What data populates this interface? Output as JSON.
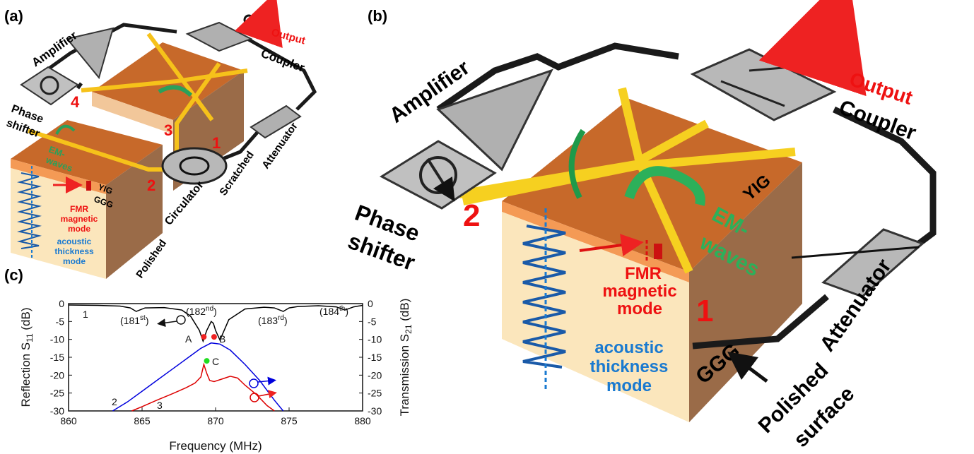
{
  "panels": {
    "a": {
      "label": "(a)",
      "amplifier": "Amplifier",
      "output": "Output",
      "coupler": "Coupler",
      "phase": "Phase",
      "shifter": "shifter",
      "em": "EM-",
      "waves": "waves",
      "yig": "YIG",
      "ggg": "GGG",
      "fmr": "FMR",
      "magnetic": "magnetic",
      "mode": "mode",
      "acoustic": "acoustic",
      "thickness": "thickness",
      "mode2": "mode",
      "circulator": "Circulator",
      "scratched": "Scratched",
      "attenuator": "Attenuator",
      "polished": "Polished",
      "port1": "1",
      "port2": "2",
      "port3": "3",
      "port4": "4"
    },
    "b": {
      "label": "(b)",
      "amplifier": "Amplifier",
      "output": "Output",
      "coupler": "Coupler",
      "phase": "Phase",
      "shifter": "shifter",
      "em": "EM-",
      "waves": "waves",
      "yig": "YIG",
      "ggg": "GGG",
      "fmr": "FMR",
      "magnetic": "magnetic",
      "mode": "mode",
      "acoustic": "acoustic",
      "thickness": "thickness",
      "mode2": "mode",
      "attenuator": "Attenuator",
      "polished": "Polished",
      "surface": "surface",
      "port1": "1",
      "port2": "2"
    },
    "c": {
      "label": "(c)",
      "curve1": "1",
      "curve2": "2",
      "curve3": "3",
      "pointA": "A",
      "pointB": "B",
      "pointC": "C",
      "mode181": "(181",
      "mode181sup": "st",
      "mode182": "(182",
      "mode182sup": "nd",
      "mode183": "(183",
      "mode183sup": "rd",
      "mode184": "(184",
      "mode184sup": "th",
      "close": ")"
    }
  },
  "chart_data": {
    "type": "line",
    "xlabel": "Frequency (MHz)",
    "ylabel_left_main": "Reflection S",
    "ylabel_left_sub": "11",
    "ylabel_left_unit": " (dB)",
    "ylabel_right_main": "Transmission S",
    "ylabel_right_sub": "21",
    "ylabel_right_unit": " (dB)",
    "xlim": [
      860,
      880
    ],
    "ylim": [
      -30,
      0
    ],
    "xticks": [
      "860",
      "865",
      "870",
      "875",
      "880"
    ],
    "yticks": [
      "0",
      "-5",
      "-10",
      "-15",
      "-20",
      "-25",
      "-30"
    ],
    "colors": {
      "curve1": "#000000",
      "curve2": "#0000dd",
      "curve3": "#dd0000",
      "marker_ab": "#ee2222",
      "marker_c": "#22dd22"
    },
    "series": [
      {
        "name": "1",
        "axis": "left",
        "x": [
          860,
          862,
          863.5,
          864.2,
          864.6,
          865.2,
          866.5,
          867.7,
          868.3,
          868.9,
          869.15,
          869.4,
          869.7,
          869.85,
          870.0,
          870.3,
          870.9,
          872,
          873.3,
          874.0,
          874.6,
          875.0,
          875.6,
          877,
          878.2,
          878.8,
          879.4,
          880
        ],
        "y": [
          -0.4,
          -0.5,
          -0.7,
          -1.2,
          -2.2,
          -1.2,
          -1.1,
          -1.8,
          -3.5,
          -7.5,
          -10.5,
          -7.5,
          -5.0,
          -5.5,
          -7.5,
          -10.2,
          -4.5,
          -1.5,
          -1.0,
          -1.2,
          -2.2,
          -1.2,
          -0.8,
          -0.6,
          -0.9,
          -1.8,
          -0.9,
          -0.5
        ]
      },
      {
        "name": "2",
        "axis": "right",
        "x": [
          863.0,
          864.0,
          865.0,
          866.0,
          867.0,
          868.0,
          869.0,
          869.7,
          870.3,
          871.0,
          872.0,
          873.0,
          874.0,
          874.6
        ],
        "y": [
          -30,
          -27.5,
          -24.5,
          -21.5,
          -18.5,
          -15.5,
          -12.5,
          -11.0,
          -11.3,
          -13.0,
          -17.0,
          -21.5,
          -27.0,
          -30
        ]
      },
      {
        "name": "3",
        "axis": "right",
        "x": [
          864.3,
          865,
          866,
          867,
          868,
          868.6,
          869.0,
          869.2,
          869.4,
          869.6,
          869.9,
          870.5,
          871.0,
          871.5,
          872.0,
          872.8,
          873.5,
          874.0
        ],
        "y": [
          -30,
          -28.8,
          -27.0,
          -25.3,
          -23.5,
          -22.2,
          -20.5,
          -17.0,
          -19.5,
          -21.5,
          -21.8,
          -21.0,
          -20.3,
          -20.8,
          -22.8,
          -25.5,
          -28.5,
          -30
        ]
      }
    ],
    "points": [
      {
        "label": "A",
        "x": 869.2,
        "y": -9.3
      },
      {
        "label": "B",
        "x": 869.9,
        "y": -9.3
      },
      {
        "label": "C",
        "x": 869.4,
        "y": -16.0
      }
    ],
    "annotations": [
      {
        "text": "(181st)",
        "x": 866.5,
        "y": -4.5
      },
      {
        "text": "(182nd)",
        "x": 869.8,
        "y": -2.5
      },
      {
        "text": "(183rd)",
        "x": 874.3,
        "y": -4.5
      },
      {
        "text": "(184th)",
        "x": 878.4,
        "y": -2.5
      }
    ]
  }
}
